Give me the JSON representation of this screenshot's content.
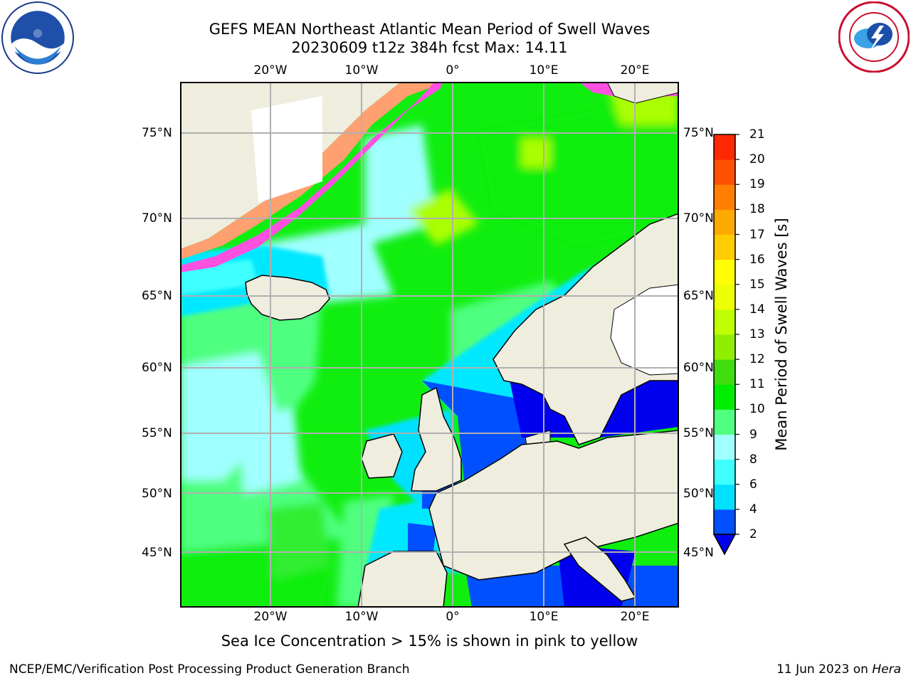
{
  "title_line1": "GEFS MEAN Northeast Atlantic Mean Period of Swell Waves",
  "title_line2": "20230609 t12z 384h fcst   Max: 14.11",
  "logos": {
    "left": "NOAA",
    "right": "NATIONAL WEATHER SERVICE"
  },
  "map": {
    "lon_labels": [
      "20°W",
      "10°W",
      "0°",
      "10°E",
      "20°E"
    ],
    "lat_labels": [
      "75°N",
      "70°N",
      "65°N",
      "60°N",
      "55°N",
      "50°N",
      "45°N"
    ],
    "colors": {
      "ocean_low": "#0050ff",
      "ocean_blue": "#0000ee",
      "cyan": "#00e8ff",
      "light_cyan": "#a0ffff",
      "light_green": "#50ff80",
      "green": "#10ee10",
      "yellow_green": "#aaff00",
      "land": "#efedde",
      "grid": "#b0b0b0",
      "ice_pink": "#ff50e0",
      "ice_orange": "#ffa070"
    }
  },
  "colorbar": {
    "title": "Mean Period of Swell Waves [s]",
    "ticks": [
      "2",
      "4",
      "6",
      "8",
      "9",
      "10",
      "11",
      "12",
      "13",
      "14",
      "15",
      "16",
      "17",
      "18",
      "19",
      "20",
      "21"
    ],
    "colors": [
      "#0050ff",
      "#00e0ff",
      "#40ffff",
      "#a0ffff",
      "#50ff80",
      "#00ee00",
      "#40dd10",
      "#90ee00",
      "#c0ff00",
      "#eeff00",
      "#ffff00",
      "#ffcc00",
      "#ffaa00",
      "#ff8000",
      "#ff5000",
      "#ff2800"
    ],
    "extend_color": "#0000ee"
  },
  "note": "Sea Ice Concentration > 15% is shown in pink to yellow",
  "footer": {
    "left": "NCEP/EMC/Verification Post Processing Product Generation Branch",
    "date": "11 Jun 2023 on ",
    "host": "Hera"
  }
}
